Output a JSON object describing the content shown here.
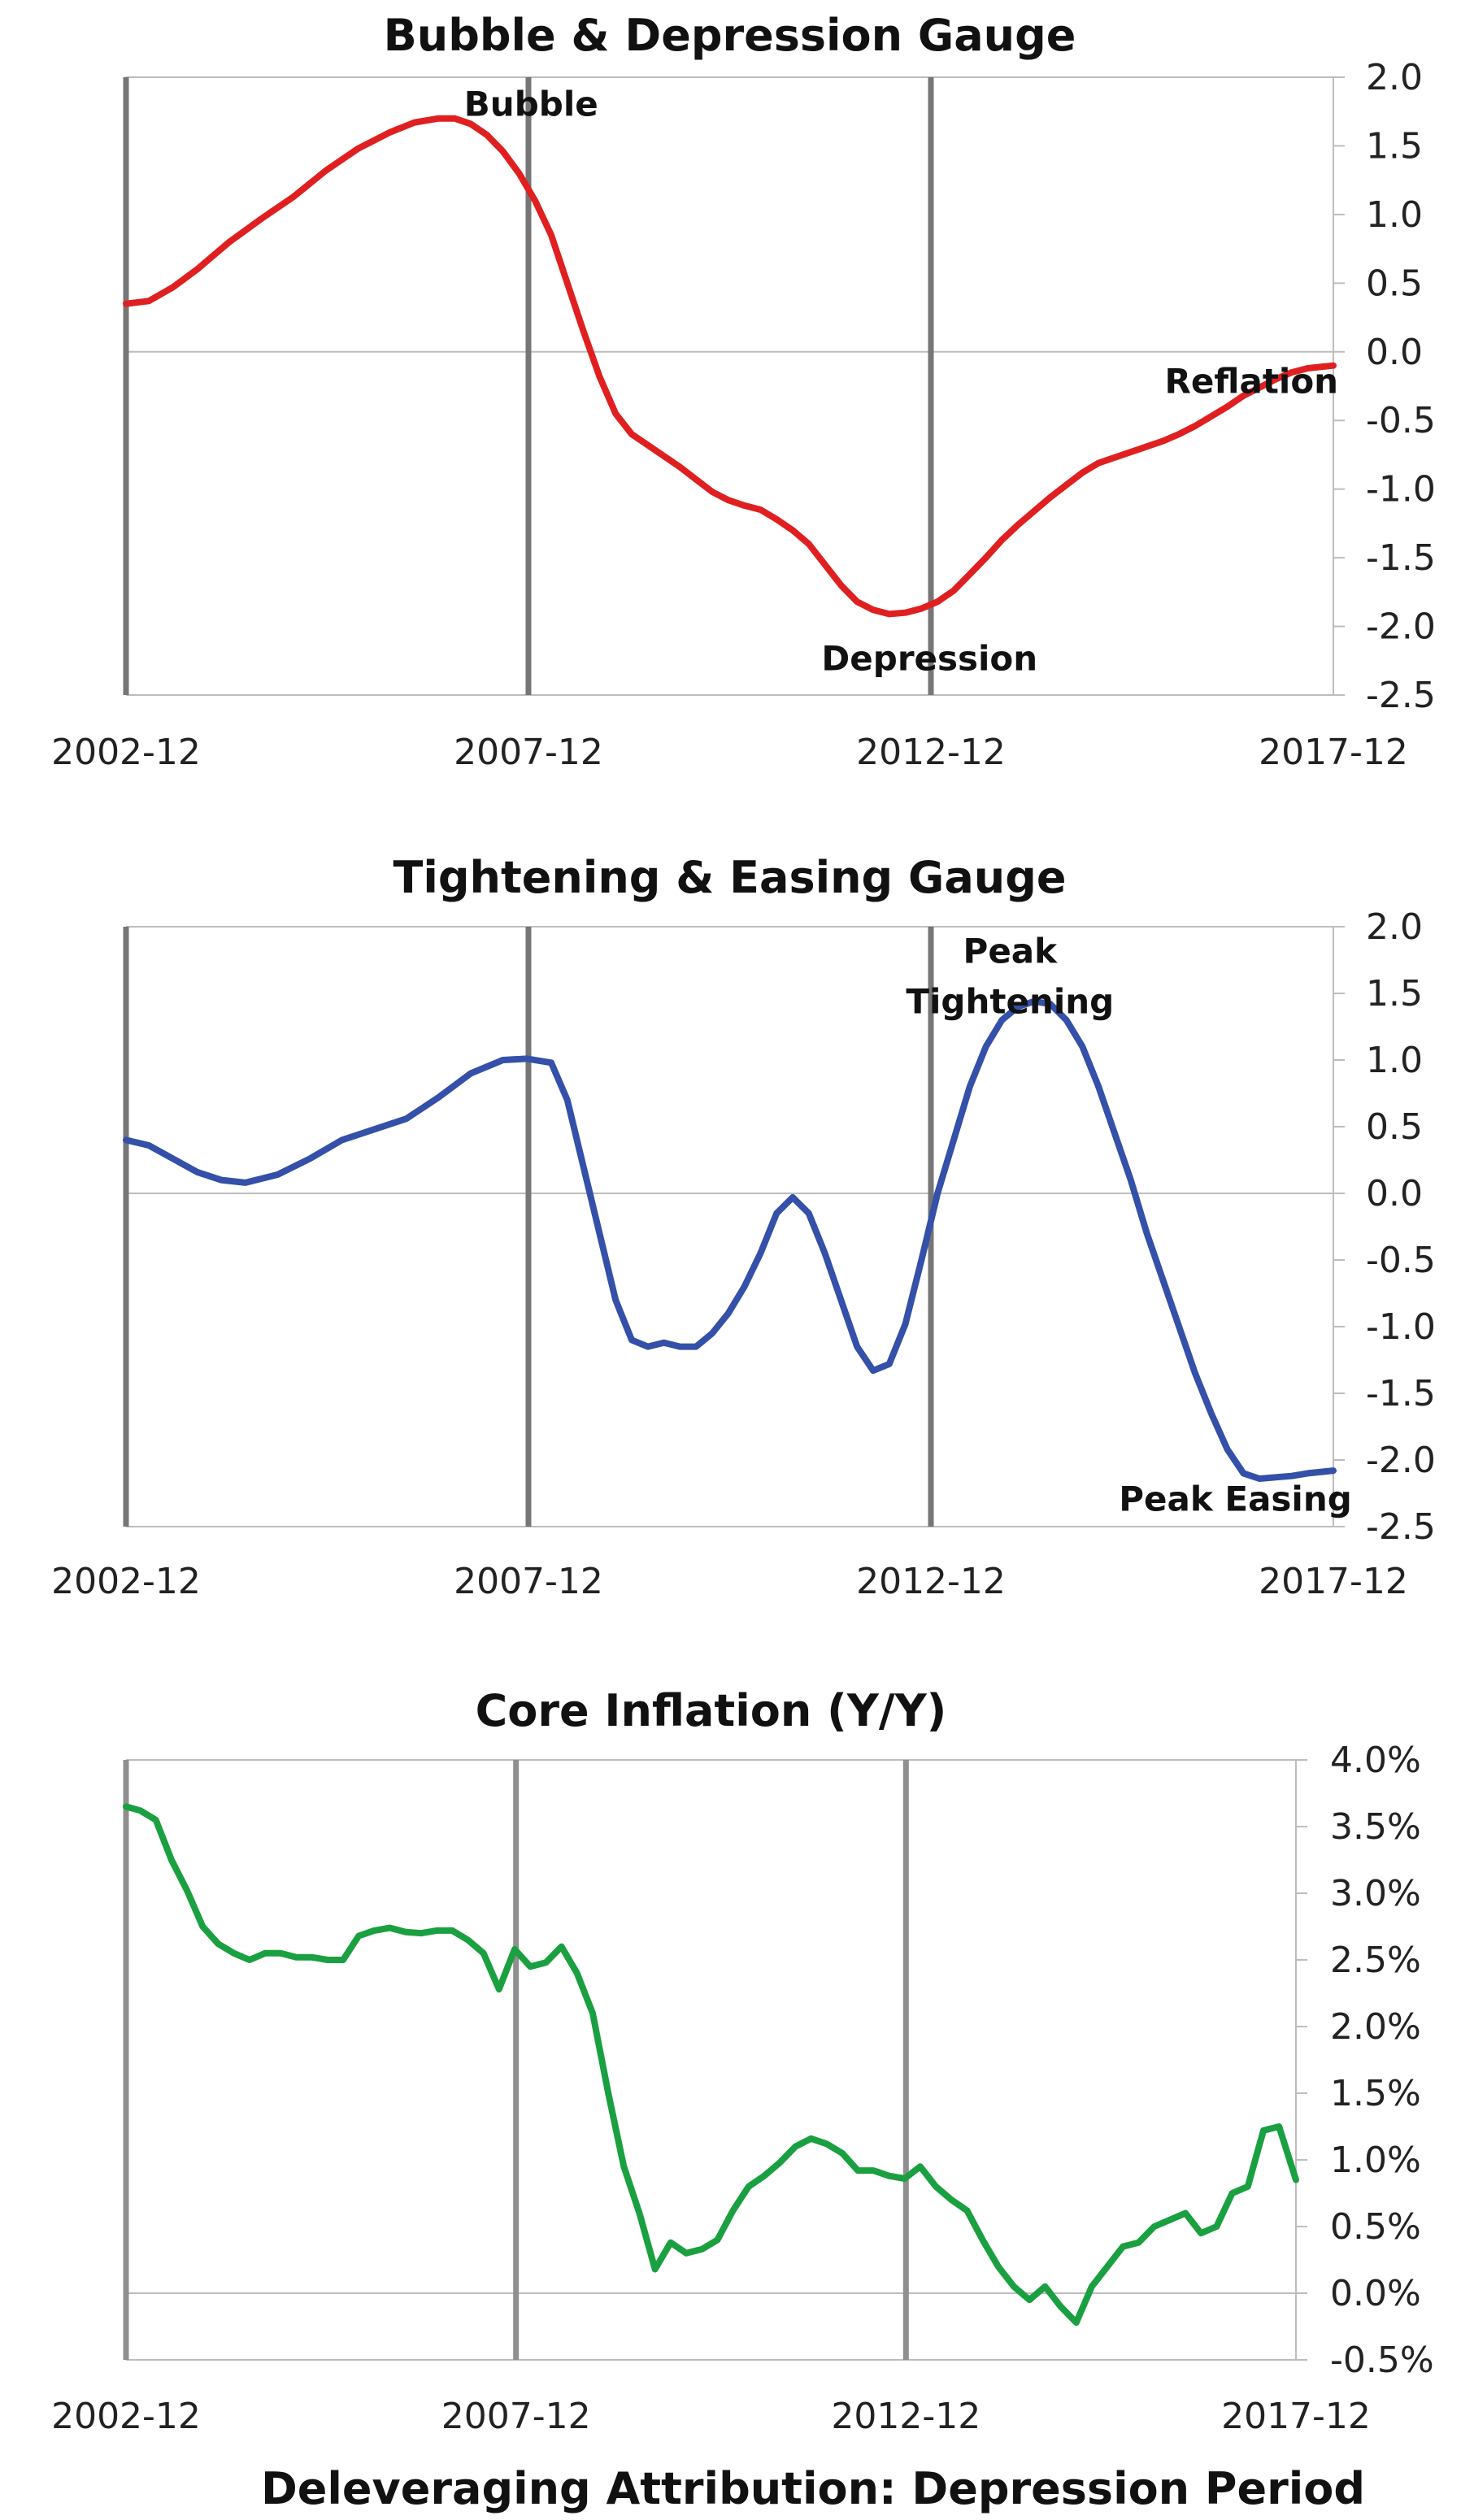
{
  "chart_data": [
    {
      "type": "line",
      "title": "Bubble & Depression Gauge",
      "xlabel": "",
      "ylabel": "",
      "x_ticks": [
        "2002-12",
        "2007-12",
        "2012-12",
        "2017-12"
      ],
      "x_range": [
        2002.917,
        2017.917
      ],
      "ylim": [
        -2.5,
        2.0
      ],
      "y_ticks": [
        "2.0",
        "1.5",
        "1.0",
        "0.5",
        "0.0",
        "-0.5",
        "-1.0",
        "-1.5",
        "-2.0",
        "-2.5"
      ],
      "y_tick_values": [
        2.0,
        1.5,
        1.0,
        0.5,
        0.0,
        -0.5,
        -1.0,
        -1.5,
        -2.0,
        -2.5
      ],
      "y_axis_side": "right",
      "vertical_markers": [
        2002.917,
        2007.917,
        2012.917
      ],
      "grid": false,
      "color": "#e02020",
      "annotations": [
        {
          "text": "Bubble",
          "x": 2007.95,
          "y": 1.72
        },
        {
          "text": "Depression",
          "x": 2012.9,
          "y": -2.32
        },
        {
          "text": "Reflation",
          "x": 2016.9,
          "y": -0.3
        }
      ],
      "series": [
        {
          "x": [
            2002.917,
            2003.2,
            2003.5,
            2003.8,
            2004.2,
            2004.6,
            2005.0,
            2005.4,
            2005.8,
            2006.2,
            2006.5,
            2006.8,
            2007.0,
            2007.2,
            2007.4,
            2007.6,
            2007.8,
            2008.0,
            2008.2,
            2008.4,
            2008.6,
            2008.8,
            2009.0,
            2009.2,
            2009.4,
            2009.6,
            2009.8,
            2010.0,
            2010.2,
            2010.4,
            2010.6,
            2010.8,
            2011.0,
            2011.2,
            2011.4,
            2011.6,
            2011.8,
            2012.0,
            2012.2,
            2012.4,
            2012.6,
            2012.8,
            2013.0,
            2013.2,
            2013.4,
            2013.6,
            2013.8,
            2014.0,
            2014.2,
            2014.4,
            2014.6,
            2014.8,
            2015.0,
            2015.2,
            2015.4,
            2015.6,
            2015.8,
            2016.0,
            2016.2,
            2016.4,
            2016.6,
            2016.8,
            2017.0,
            2017.2,
            2017.4,
            2017.6,
            2017.917
          ],
          "y": [
            0.35,
            0.37,
            0.47,
            0.6,
            0.8,
            0.97,
            1.13,
            1.32,
            1.48,
            1.6,
            1.67,
            1.7,
            1.7,
            1.66,
            1.58,
            1.46,
            1.3,
            1.1,
            0.85,
            0.5,
            0.15,
            -0.18,
            -0.45,
            -0.6,
            -0.68,
            -0.76,
            -0.84,
            -0.93,
            -1.02,
            -1.08,
            -1.12,
            -1.15,
            -1.22,
            -1.3,
            -1.4,
            -1.55,
            -1.7,
            -1.82,
            -1.88,
            -1.91,
            -1.9,
            -1.87,
            -1.82,
            -1.74,
            -1.62,
            -1.5,
            -1.37,
            -1.26,
            -1.16,
            -1.06,
            -0.97,
            -0.88,
            -0.81,
            -0.77,
            -0.73,
            -0.69,
            -0.65,
            -0.6,
            -0.54,
            -0.47,
            -0.4,
            -0.32,
            -0.26,
            -0.2,
            -0.15,
            -0.12,
            -0.1
          ]
        }
      ]
    },
    {
      "type": "line",
      "title": "Tightening & Easing Gauge",
      "xlabel": "",
      "ylabel": "",
      "x_ticks": [
        "2002-12",
        "2007-12",
        "2012-12",
        "2017-12"
      ],
      "x_range": [
        2002.917,
        2017.917
      ],
      "ylim": [
        -2.5,
        2.0
      ],
      "y_ticks": [
        "2.0",
        "1.5",
        "1.0",
        "0.5",
        "0.0",
        "-0.5",
        "-1.0",
        "-1.5",
        "-2.0",
        "-2.5"
      ],
      "y_tick_values": [
        2.0,
        1.5,
        1.0,
        0.5,
        0.0,
        -0.5,
        -1.0,
        -1.5,
        -2.0,
        -2.5
      ],
      "y_axis_side": "right",
      "vertical_markers": [
        2002.917,
        2007.917,
        2012.917
      ],
      "grid": false,
      "color": "#3450a8",
      "annotations": [
        {
          "text": "Peak",
          "x": 2013.9,
          "y": 1.73
        },
        {
          "text": "Tightening",
          "x": 2013.9,
          "y": 1.35
        },
        {
          "text": "Peak Easing",
          "x": 2016.7,
          "y": -2.38
        }
      ],
      "series": [
        {
          "x": [
            2002.917,
            2003.2,
            2003.5,
            2003.8,
            2004.1,
            2004.4,
            2004.8,
            2005.2,
            2005.6,
            2006.0,
            2006.4,
            2006.8,
            2007.2,
            2007.6,
            2007.9,
            2008.2,
            2008.4,
            2008.6,
            2008.8,
            2009.0,
            2009.2,
            2009.4,
            2009.6,
            2009.8,
            2010.0,
            2010.2,
            2010.4,
            2010.6,
            2010.8,
            2011.0,
            2011.2,
            2011.4,
            2011.6,
            2011.8,
            2012.0,
            2012.2,
            2012.4,
            2012.6,
            2012.8,
            2013.0,
            2013.2,
            2013.4,
            2013.6,
            2013.8,
            2014.0,
            2014.2,
            2014.4,
            2014.6,
            2014.8,
            2015.0,
            2015.2,
            2015.4,
            2015.6,
            2015.8,
            2016.0,
            2016.2,
            2016.4,
            2016.6,
            2016.8,
            2017.0,
            2017.2,
            2017.4,
            2017.6,
            2017.917
          ],
          "y": [
            0.4,
            0.36,
            0.26,
            0.16,
            0.1,
            0.08,
            0.14,
            0.26,
            0.4,
            0.48,
            0.56,
            0.72,
            0.9,
            1.0,
            1.01,
            0.98,
            0.7,
            0.2,
            -0.3,
            -0.8,
            -1.1,
            -1.15,
            -1.12,
            -1.15,
            -1.15,
            -1.05,
            -0.9,
            -0.7,
            -0.45,
            -0.15,
            -0.03,
            -0.15,
            -0.45,
            -0.8,
            -1.15,
            -1.33,
            -1.28,
            -0.98,
            -0.5,
            0.0,
            0.4,
            0.8,
            1.1,
            1.3,
            1.4,
            1.44,
            1.42,
            1.3,
            1.1,
            0.8,
            0.45,
            0.1,
            -0.3,
            -0.65,
            -1.0,
            -1.35,
            -1.65,
            -1.92,
            -2.1,
            -2.14,
            -2.13,
            -2.12,
            -2.1,
            -2.08
          ]
        }
      ]
    },
    {
      "type": "line",
      "title": "Core Inflation (Y/Y)",
      "xlabel": "",
      "ylabel": "",
      "x_ticks": [
        "2002-12",
        "2007-12",
        "2012-12",
        "2017-12"
      ],
      "x_range": [
        2002.917,
        2017.917
      ],
      "ylim": [
        -0.5,
        4.0
      ],
      "y_ticks": [
        "4.0%",
        "3.5%",
        "3.0%",
        "2.5%",
        "2.0%",
        "1.5%",
        "1.0%",
        "0.5%",
        "0.0%",
        "-0.5%"
      ],
      "y_tick_values": [
        4.0,
        3.5,
        3.0,
        2.5,
        2.0,
        1.5,
        1.0,
        0.5,
        0.0,
        -0.5
      ],
      "y_axis_side": "right",
      "vertical_markers": [
        2002.917,
        2007.917,
        2012.917
      ],
      "grid": false,
      "color": "#1aa040",
      "annotations": [],
      "series": [
        {
          "x": [
            2002.917,
            2003.1,
            2003.3,
            2003.5,
            2003.7,
            2003.9,
            2004.1,
            2004.3,
            2004.5,
            2004.7,
            2004.9,
            2005.1,
            2005.3,
            2005.5,
            2005.7,
            2005.9,
            2006.1,
            2006.3,
            2006.5,
            2006.7,
            2006.9,
            2007.1,
            2007.3,
            2007.5,
            2007.7,
            2007.9,
            2008.1,
            2008.3,
            2008.5,
            2008.7,
            2008.9,
            2009.1,
            2009.3,
            2009.5,
            2009.7,
            2009.9,
            2010.1,
            2010.3,
            2010.5,
            2010.7,
            2010.9,
            2011.1,
            2011.3,
            2011.5,
            2011.7,
            2011.9,
            2012.1,
            2012.3,
            2012.5,
            2012.7,
            2012.9,
            2013.1,
            2013.3,
            2013.5,
            2013.7,
            2013.9,
            2014.1,
            2014.3,
            2014.5,
            2014.7,
            2014.9,
            2015.1,
            2015.3,
            2015.5,
            2015.7,
            2015.9,
            2016.1,
            2016.3,
            2016.5,
            2016.7,
            2016.9,
            2017.1,
            2017.3,
            2017.5,
            2017.7,
            2017.917
          ],
          "y": [
            3.65,
            3.62,
            3.55,
            3.25,
            3.02,
            2.75,
            2.62,
            2.55,
            2.5,
            2.55,
            2.55,
            2.52,
            2.52,
            2.5,
            2.5,
            2.68,
            2.72,
            2.74,
            2.71,
            2.7,
            2.72,
            2.72,
            2.65,
            2.55,
            2.28,
            2.58,
            2.45,
            2.48,
            2.6,
            2.4,
            2.1,
            1.5,
            0.95,
            0.6,
            0.18,
            0.38,
            0.3,
            0.33,
            0.4,
            0.62,
            0.8,
            0.88,
            0.98,
            1.1,
            1.16,
            1.12,
            1.05,
            0.92,
            0.92,
            0.88,
            0.86,
            0.95,
            0.8,
            0.7,
            0.62,
            0.4,
            0.2,
            0.05,
            -0.05,
            0.05,
            -0.1,
            -0.22,
            0.05,
            0.2,
            0.35,
            0.38,
            0.5,
            0.55,
            0.6,
            0.45,
            0.5,
            0.75,
            0.8,
            1.22,
            1.25,
            0.85
          ]
        }
      ]
    }
  ],
  "footer": "Deleveraging Attribution: Depression Period"
}
